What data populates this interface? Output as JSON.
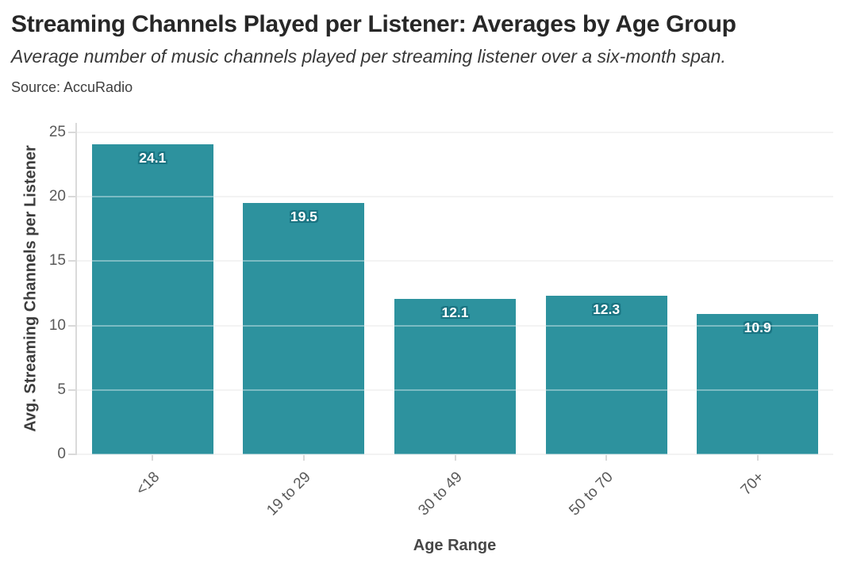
{
  "header": {
    "title": "Streaming Channels Played per Listener: Averages by Age Group",
    "subtitle": "Average number of music channels played per streaming listener over a six-month span.",
    "source": "Source: AccuRadio"
  },
  "chart_data": {
    "type": "bar",
    "categories": [
      "<18",
      "19 to 29",
      "30 to 49",
      "50 to 70",
      "70+"
    ],
    "values": [
      24.1,
      19.5,
      12.1,
      12.3,
      10.9
    ],
    "data_labels": [
      "24.1",
      "19.5",
      "12.1",
      "12.3",
      "10.9"
    ],
    "title": "Streaming Channels Played per Listener: Averages by Age Group",
    "xlabel": "Age Range",
    "ylabel": "Avg. Streaming Channels per Listener",
    "ylim": [
      0,
      25
    ],
    "yticks": [
      0,
      5,
      10,
      15,
      20,
      25
    ],
    "grid": true,
    "legend": "none",
    "bar_color": "#2d929e",
    "bar_label_color": "#ffffff",
    "bar_label_halo_color": "#1a7482",
    "gridline_color": "#ececec",
    "axis_text_color": "#595959"
  }
}
